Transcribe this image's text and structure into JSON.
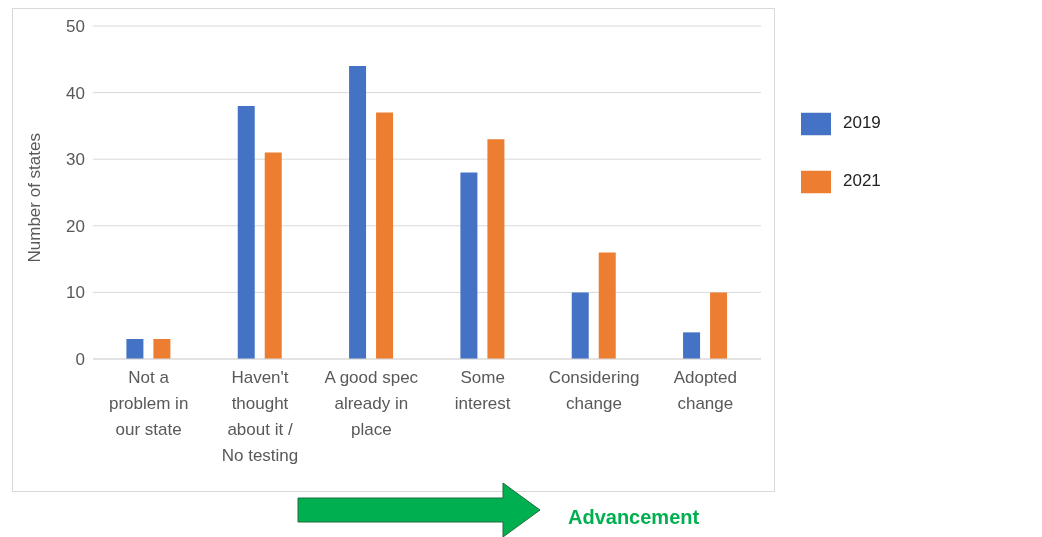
{
  "chart_data": {
    "type": "bar",
    "ylabel": "Number of states",
    "categories": [
      "Not a problem in our state",
      "Haven't thought about it / No testing",
      "A good spec already in place",
      "Some interest",
      "Considering change",
      "Adopted change"
    ],
    "series": [
      {
        "name": "2019",
        "color": "#4472c4",
        "values": [
          3,
          38,
          44,
          28,
          10,
          4
        ]
      },
      {
        "name": "2021",
        "color": "#ed7d31",
        "values": [
          3,
          31,
          37,
          33,
          16,
          10
        ]
      }
    ],
    "ylim": [
      0,
      50
    ],
    "yticks": [
      0,
      10,
      20,
      30,
      40,
      50
    ],
    "grid": "y",
    "legend": "right",
    "annotations": [
      "Advancement"
    ]
  }
}
